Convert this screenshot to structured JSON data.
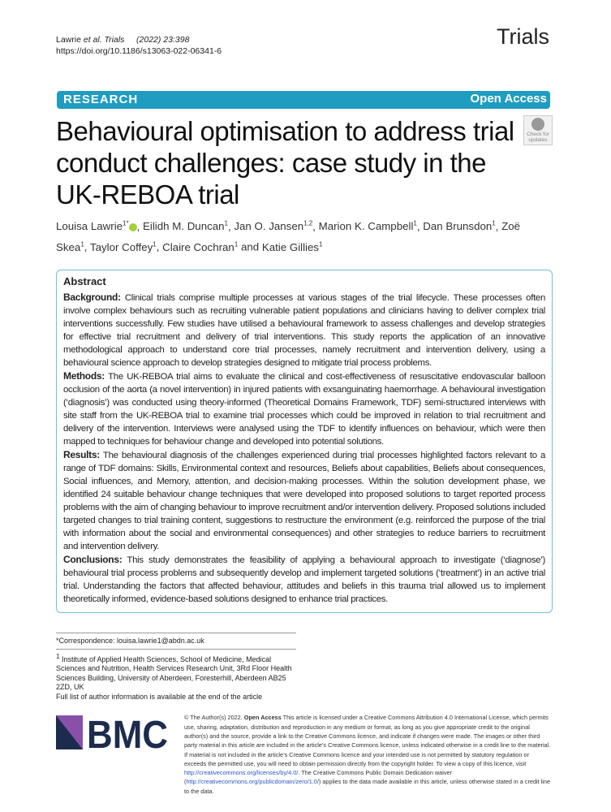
{
  "header": {
    "authors_short": "Lawrie ",
    "et_al_journal": "et al. Trials",
    "year_vol": "(2022) 23:398",
    "doi": "https://doi.org/10.1186/s13063-022-06341-6",
    "journal": "Trials"
  },
  "banner": {
    "type": "RESEARCH",
    "access": "Open Access",
    "color": "#1f9dc0"
  },
  "check_updates": "Check for updates",
  "title": "Behavioural optimisation to address trial conduct challenges: case study in the UK-REBOA trial",
  "authors": [
    {
      "name": "Louisa Lawrie",
      "aff": "1*",
      "orcid": true
    },
    {
      "name": "Eilidh M. Duncan",
      "aff": "1"
    },
    {
      "name": "Jan O. Jansen",
      "aff": "1,2"
    },
    {
      "name": "Marion K. Campbell",
      "aff": "1"
    },
    {
      "name": "Dan Brunsdon",
      "aff": "1"
    },
    {
      "name": "Zoë Skea",
      "aff": "1"
    },
    {
      "name": "Taylor Coffey",
      "aff": "1"
    },
    {
      "name": "Claire Cochran",
      "aff": "1"
    },
    {
      "name": "Katie Gillies",
      "aff": "1"
    }
  ],
  "abstract": {
    "heading": "Abstract",
    "sections": [
      {
        "label": "Background:",
        "text": "Clinical trials comprise multiple processes at various stages of the trial lifecycle. These processes often involve complex behaviours such as recruiting vulnerable patient populations and clinicians having to deliver complex trial interventions successfully. Few studies have utilised a behavioural framework to assess challenges and develop strategies for effective trial recruitment and delivery of trial interventions. This study reports the application of an innovative methodological approach to understand core trial processes, namely recruitment and intervention delivery, using a behavioural science approach to develop strategies designed to mitigate trial process problems."
      },
      {
        "label": "Methods:",
        "text": "The UK-REBOA trial aims to evaluate the clinical and cost-effectiveness of resuscitative endovascular balloon occlusion of the aorta (a novel intervention) in injured patients with exsanguinating haemorrhage. A behavioural investigation (‘diagnosis’) was conducted using theory-informed (Theoretical Domains Framework, TDF) semi-structured interviews with site staff from the UK-REBOA trial to examine trial processes which could be improved in relation to trial recruitment and delivery of the intervention. Interviews were analysed using the TDF to identify influences on behaviour, which were then mapped to techniques for behaviour change and developed into potential solutions."
      },
      {
        "label": "Results:",
        "text": "The behavioural diagnosis of the challenges experienced during trial processes highlighted factors relevant to a range of TDF domains: Skills, Environmental context and resources, Beliefs about capabilities, Beliefs about consequences, Social influences, and Memory, attention, and decision-making processes. Within the solution development phase, we identified 24 suitable behaviour change techniques that were developed into proposed solutions to target reported process problems with the aim of changing behaviour to improve recruitment and/or intervention delivery. Proposed solutions included targeted changes to trial training content, suggestions to restructure the environment (e.g. reinforced the purpose of the trial with information about the social and environmental consequences) and other strategies to reduce barriers to recruitment and intervention delivery."
      },
      {
        "label": "Conclusions:",
        "text": "This study demonstrates the feasibility of applying a behavioural approach to investigate (‘diagnose’) behavioural trial process problems and subsequently develop and implement targeted solutions (‘treatment’) in an active trial trial. Understanding the factors that affected behaviour, attitudes and beliefs in this trauma trial allowed us to implement theoretically informed, evidence-based solutions designed to enhance trial practices."
      }
    ]
  },
  "correspondence": "*Correspondence:  louisa.lawrie1@abdn.ac.uk",
  "affiliation": {
    "mark": "1",
    "text": " Institute of Applied Health Sciences, School of Medicine, Medical Sciences and Nutrition, Health Services Research Unit, 3Rd Floor Health Sciences Building, University of Aberdeen, Foresterhill, Aberdeen AB25 2ZD, UK",
    "more": "Full list of author information is available at the end of the article"
  },
  "publisher_logo": "BMC",
  "license": {
    "prefix": "© The Author(s) 2022. ",
    "bold": "Open Access",
    "text1": " This article is licensed under a Creative Commons Attribution 4.0 International License, which permits use, sharing, adaptation, distribution and reproduction in any medium or format, as long as you give appropriate credit to the original author(s) and the source, provide a link to the Creative Commons licence, and indicate if changes were made. The images or other third party material in this article are included in the article’s Creative Commons licence, unless indicated otherwise in a credit line to the material. If material is not included in the article’s Creative Commons licence and your intended use is not permitted by statutory regulation or exceeds the permitted use, you will need to obtain permission directly from the copyright holder. To view a copy of this licence, visit ",
    "link1": "http://creativecommons.org/licenses/by/4.0/",
    "text2": ". The Creative Commons Public Domain Dedication waiver (",
    "link2": "http://creativecommons.org/publicdomain/zero/1.0/",
    "text3": ") applies to the data made available in this article, unless otherwise stated in a credit line to the data."
  }
}
